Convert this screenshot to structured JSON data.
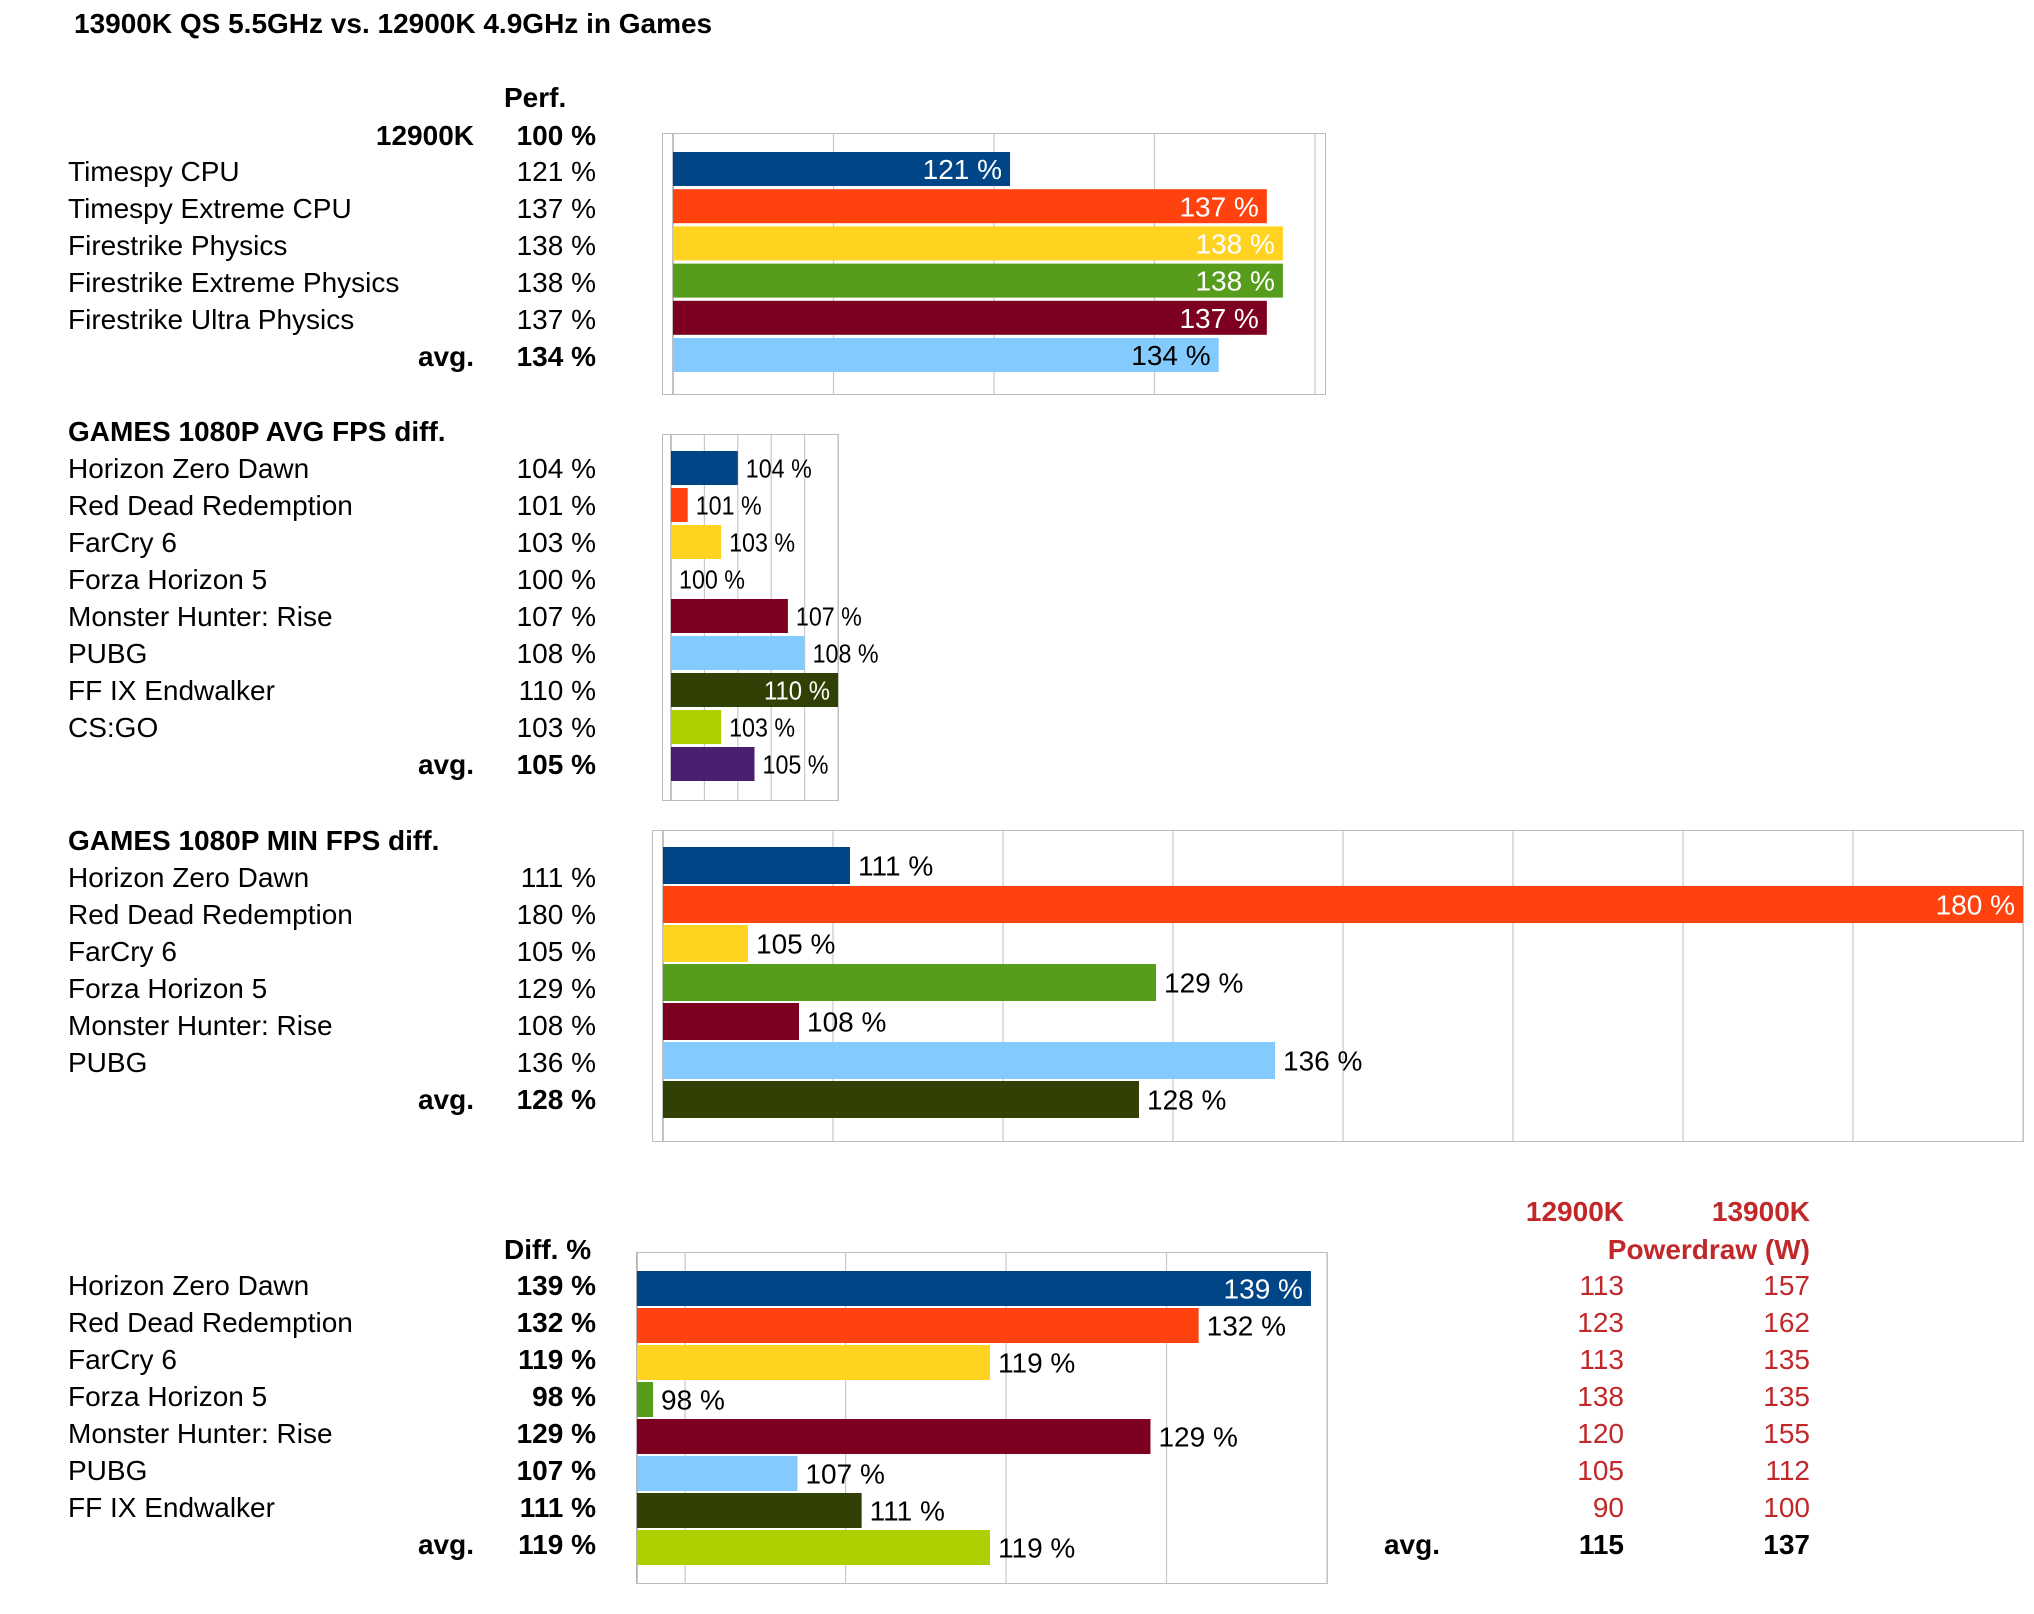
{
  "title": "13900K QS 5.5GHz vs. 12900K 4.9GHz in Games",
  "colors": [
    "#004586",
    "#ff420e",
    "#ffd320",
    "#579d1c",
    "#7e0021",
    "#83caff",
    "#314004",
    "#aecf00",
    "#4b1f6f"
  ],
  "synthetic": {
    "header": "Perf.",
    "baseline_label": "12900K",
    "baseline_value": "100 %",
    "rows": [
      {
        "label": "Timespy CPU",
        "value": "121 %"
      },
      {
        "label": "Timespy Extreme CPU",
        "value": "137 %"
      },
      {
        "label": "Firestrike Physics",
        "value": "138 %"
      },
      {
        "label": "Firestrike Extreme Physics",
        "value": "138 %"
      },
      {
        "label": "Firestrike Ultra Physics",
        "value": "137 %"
      }
    ],
    "avg_label": "avg.",
    "avg_value": "134 %"
  },
  "avg_fps": {
    "header": "GAMES 1080P AVG FPS diff.",
    "rows": [
      {
        "label": "Horizon Zero Dawn",
        "value": "104 %"
      },
      {
        "label": "Red Dead Redemption",
        "value": "101 %"
      },
      {
        "label": "FarCry 6",
        "value": "103 %"
      },
      {
        "label": "Forza Horizon 5",
        "value": "100 %"
      },
      {
        "label": "Monster Hunter: Rise",
        "value": "107 %"
      },
      {
        "label": "PUBG",
        "value": "108 %"
      },
      {
        "label": "FF IX Endwalker",
        "value": "110 %"
      },
      {
        "label": "CS:GO",
        "value": "103 %"
      }
    ],
    "avg_label": "avg.",
    "avg_value": "105 %"
  },
  "min_fps": {
    "header": "GAMES 1080P MIN FPS diff.",
    "rows": [
      {
        "label": "Horizon Zero Dawn",
        "value": "111 %"
      },
      {
        "label": "Red Dead Redemption",
        "value": "180 %"
      },
      {
        "label": "FarCry 6",
        "value": "105 %"
      },
      {
        "label": "Forza Horizon 5",
        "value": "129 %"
      },
      {
        "label": "Monster Hunter: Rise",
        "value": "108 %"
      },
      {
        "label": "PUBG",
        "value": "136 %"
      }
    ],
    "avg_label": "avg.",
    "avg_value": "128 %"
  },
  "power": {
    "header": "Diff. %",
    "col_12900k": "12900K",
    "col_13900k": "13900K",
    "powerdraw_label": "Powerdraw (W)",
    "rows": [
      {
        "label": "Horizon Zero Dawn",
        "value": "139 %",
        "p12": "113",
        "p13": "157"
      },
      {
        "label": "Red Dead Redemption",
        "value": "132 %",
        "p12": "123",
        "p13": "162"
      },
      {
        "label": "FarCry 6",
        "value": "119 %",
        "p12": "113",
        "p13": "135"
      },
      {
        "label": "Forza Horizon 5",
        "value": "98 %",
        "p12": "138",
        "p13": "135"
      },
      {
        "label": "Monster Hunter: Rise",
        "value": "129 %",
        "p12": "120",
        "p13": "155"
      },
      {
        "label": "PUBG",
        "value": "107 %",
        "p12": "105",
        "p13": "112"
      },
      {
        "label": "FF IX Endwalker",
        "value": "111 %",
        "p12": "90",
        "p13": "100"
      }
    ],
    "avg_label": "avg.",
    "avg_value": "119 %",
    "avg_label_power": "avg.",
    "avg_p12": "115",
    "avg_p13": "137"
  },
  "chart_data": [
    {
      "type": "bar",
      "orientation": "horizontal",
      "title": "Perf.",
      "categories": [
        "Timespy CPU",
        "Timespy Extreme CPU",
        "Firestrike Physics",
        "Firestrike Extreme Physics",
        "Firestrike Ultra Physics",
        "avg."
      ],
      "values": [
        121,
        137,
        138,
        138,
        137,
        134
      ],
      "labels": [
        "121 %",
        "137 %",
        "138 %",
        "138 %",
        "137 %",
        "134 %"
      ],
      "xlim": [
        100,
        140
      ],
      "grid_step": 10,
      "label_inside": true
    },
    {
      "type": "bar",
      "orientation": "horizontal",
      "title": "GAMES 1080P AVG FPS diff.",
      "categories": [
        "Horizon Zero Dawn",
        "Red Dead Redemption",
        "FarCry 6",
        "Forza Horizon 5",
        "Monster Hunter: Rise",
        "PUBG",
        "FF IX Endwalker",
        "CS:GO",
        "avg."
      ],
      "values": [
        104,
        101,
        103,
        100,
        107,
        108,
        110,
        103,
        105
      ],
      "labels": [
        "104 %",
        "101 %",
        "103 %",
        "100 %",
        "107 %",
        "108 %",
        "110 %",
        "103 %",
        "105 %"
      ],
      "xlim": [
        100,
        110
      ],
      "grid_step": 2
    },
    {
      "type": "bar",
      "orientation": "horizontal",
      "title": "GAMES 1080P MIN FPS diff.",
      "categories": [
        "Horizon Zero Dawn",
        "Red Dead Redemption",
        "FarCry 6",
        "Forza Horizon 5",
        "Monster Hunter: Rise",
        "PUBG",
        "avg."
      ],
      "values": [
        111,
        180,
        105,
        129,
        108,
        136,
        128
      ],
      "labels": [
        "111 %",
        "180 %",
        "105 %",
        "129 %",
        "108 %",
        "136 %",
        "128 %"
      ],
      "xlim": [
        100,
        180
      ],
      "grid_step": 10
    },
    {
      "type": "bar",
      "orientation": "horizontal",
      "title": "Diff. %",
      "categories": [
        "Horizon Zero Dawn",
        "Red Dead Redemption",
        "FarCry 6",
        "Forza Horizon 5",
        "Monster Hunter: Rise",
        "PUBG",
        "FF IX Endwalker",
        "avg."
      ],
      "values": [
        139,
        132,
        119,
        98,
        129,
        107,
        111,
        119
      ],
      "labels": [
        "139 %",
        "132 %",
        "119 %",
        "98 %",
        "129 %",
        "107 %",
        "111 %",
        "119 %"
      ],
      "xlim": [
        97,
        140
      ],
      "grid_step": 10
    }
  ]
}
